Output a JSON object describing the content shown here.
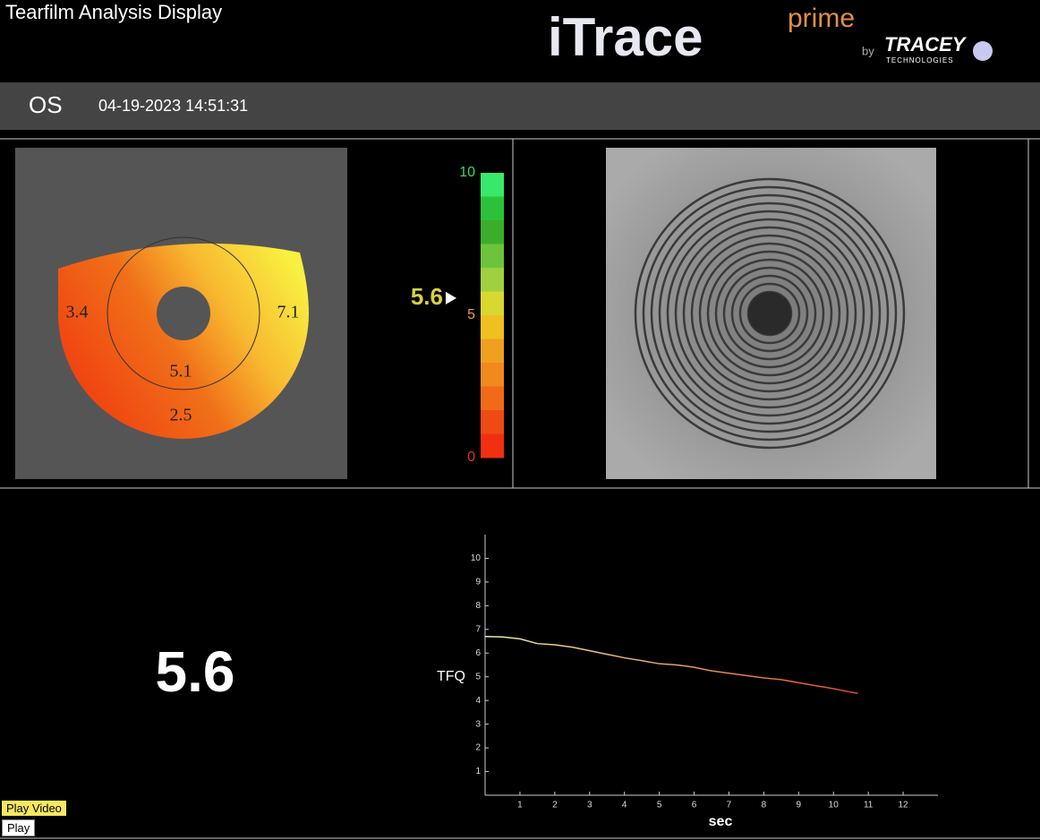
{
  "header": {
    "title": "Tearfilm Analysis Display",
    "logo": {
      "brand": "iTrace",
      "edition": "prime",
      "by": "by",
      "company": "TRACEY",
      "company_sub": "TECHNOLOGIES"
    }
  },
  "exam": {
    "eye": "OS",
    "datetime": "04-19-2023 14:51:31"
  },
  "tear_map": {
    "zone_labels": [
      "3.4",
      "7.1",
      "5.1",
      "2.5"
    ]
  },
  "colorbar": {
    "range": [
      0,
      10
    ],
    "ticks": [
      10,
      5,
      0
    ],
    "tick_colors": [
      "#3ddc5a",
      "#e8a040",
      "#e83020"
    ],
    "colors": [
      "#37e86a",
      "#2bc23a",
      "#3aae2a",
      "#6cc43a",
      "#9ed040",
      "#d8d830",
      "#f0c020",
      "#f0a020",
      "#f08a1c",
      "#f06a18",
      "#f04a14",
      "#f03010"
    ],
    "marker": 5.6,
    "marker_color": "#d8d040"
  },
  "tfq_score": 5.6,
  "chart_data": {
    "type": "line",
    "x_label": "sec",
    "y_label": "TFQ",
    "x": [
      0,
      0.5,
      1,
      1.5,
      2,
      2.5,
      3,
      3.5,
      4,
      4.5,
      5,
      5.5,
      6,
      6.5,
      7,
      7.5,
      8,
      8.5,
      9,
      9.5,
      10,
      10.5,
      10.7
    ],
    "series": [
      {
        "colors": [
          "#f0f0a0",
          "#e04a28"
        ],
        "values": [
          6.7,
          6.68,
          6.6,
          6.4,
          6.35,
          6.25,
          6.1,
          5.95,
          5.8,
          5.68,
          5.55,
          5.5,
          5.4,
          5.25,
          5.15,
          5.05,
          4.95,
          4.88,
          4.75,
          4.62,
          4.5,
          4.35,
          4.3
        ]
      }
    ],
    "xlim": [
      0,
      13
    ],
    "ylim": [
      0,
      11
    ],
    "xticks": [
      1,
      2,
      3,
      4,
      5,
      6,
      7,
      8,
      9,
      10,
      11,
      12
    ],
    "yticks": [
      1,
      2,
      3,
      4,
      5,
      6,
      7,
      8,
      9,
      10
    ]
  },
  "controls": {
    "play_video": "Play Video",
    "play": "Play"
  }
}
